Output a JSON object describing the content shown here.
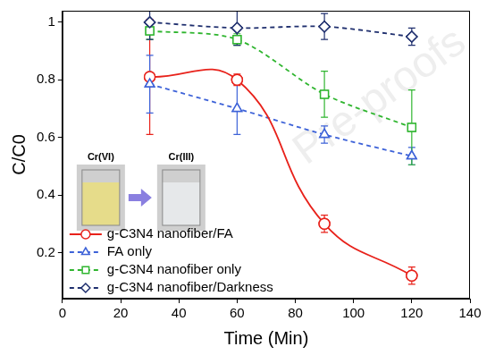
{
  "chart_data": {
    "type": "line",
    "x_label": "Time (Min)",
    "y_label": "C/C0",
    "x": [
      30,
      60,
      90,
      120
    ],
    "series": [
      {
        "name": "g-C3N4 nanofiber/FA",
        "color": "#e8221b",
        "marker": "circle",
        "line_style": "solid",
        "values": [
          0.81,
          0.8,
          0.3,
          0.12
        ],
        "errors": [
          0.2,
          0.02,
          0.03,
          0.03
        ]
      },
      {
        "name": "FA only",
        "color": "#3d62d8",
        "marker": "triangle",
        "line_style": "dashed",
        "values": [
          0.785,
          0.7,
          0.61,
          0.535
        ],
        "errors": [
          0.1,
          0.09,
          0.03,
          0.03
        ]
      },
      {
        "name": "g-C3N4 nanofiber only",
        "color": "#2fb52f",
        "marker": "square",
        "line_style": "dashed",
        "values": [
          0.97,
          0.94,
          0.75,
          0.635
        ],
        "errors": [
          0.03,
          0.02,
          0.08,
          0.13
        ]
      },
      {
        "name": "g-C3N4 nanofiber/Darkness",
        "color": "#1f2f6e",
        "marker": "diamond",
        "line_style": "dashed",
        "values": [
          1.0,
          0.98,
          0.985,
          0.95
        ],
        "errors": [
          0.06,
          0.06,
          0.045,
          0.03
        ]
      }
    ],
    "xlim": [
      0,
      140
    ],
    "xticks": [
      0,
      20,
      40,
      60,
      80,
      100,
      120,
      140
    ],
    "ylim": [
      0.04,
      1.04
    ],
    "yticks": [
      0.2,
      0.4,
      0.6,
      0.8,
      1
    ],
    "grid": false,
    "legend": "lower left",
    "annotations": [
      "Cr(VI)",
      "Cr(III)"
    ],
    "watermark": "Pre-proofs"
  }
}
